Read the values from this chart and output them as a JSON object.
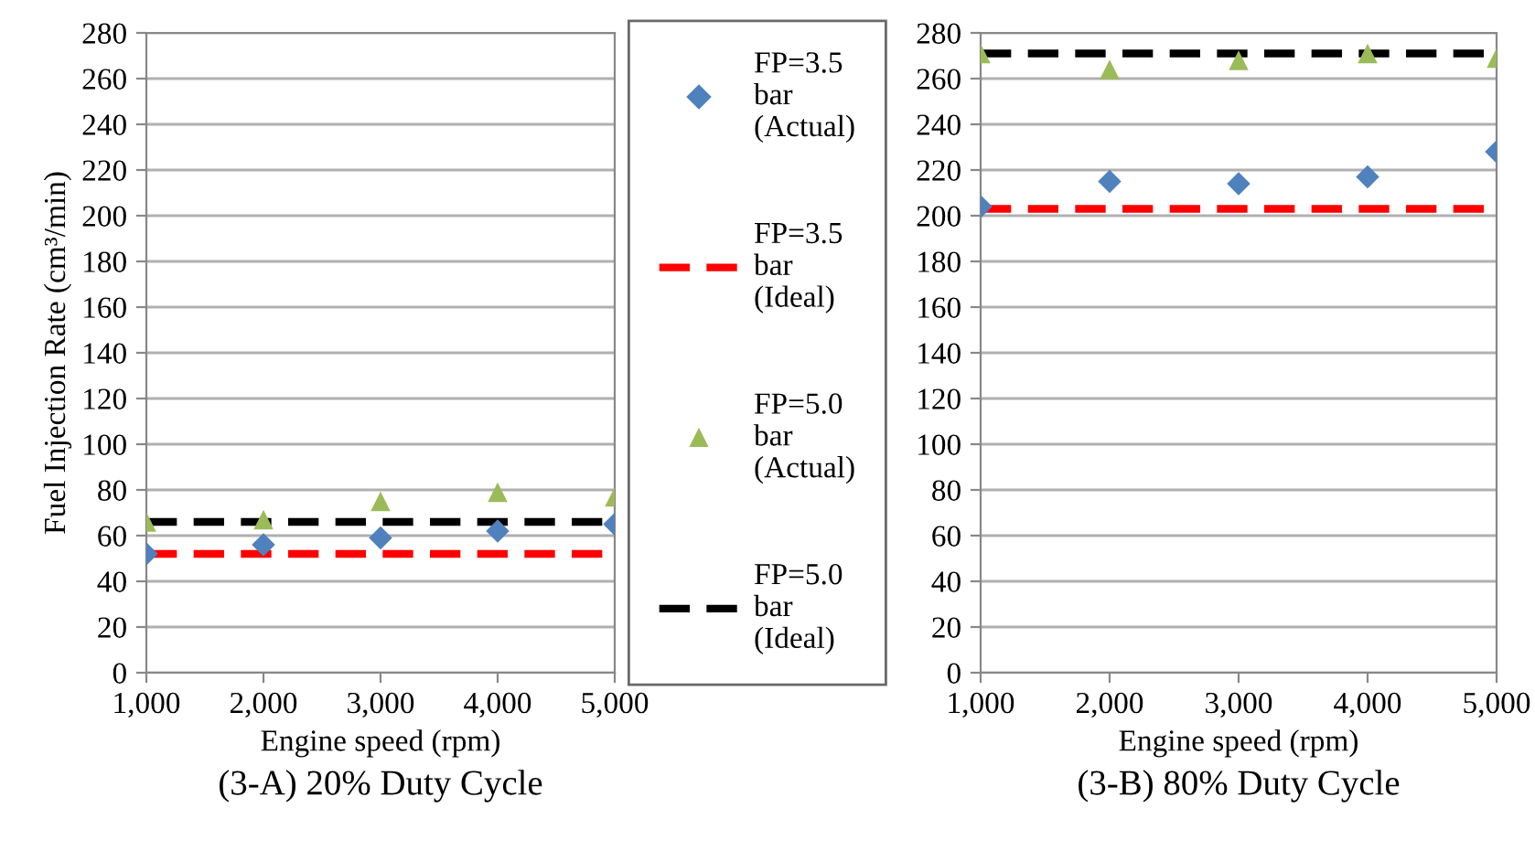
{
  "chart_data": [
    {
      "type": "scatter",
      "xlabel": "Engine speed (rpm)",
      "ylabel": "Fuel Injection Rate (cm³/min)",
      "annotations": [
        "(3-A) 20% Duty Cycle"
      ],
      "xlim": [
        1000,
        5000
      ],
      "xticks": [
        {
          "value": 1000,
          "label": "1,000"
        },
        {
          "value": 2000,
          "label": "2,000"
        },
        {
          "value": 3000,
          "label": "3,000"
        },
        {
          "value": 4000,
          "label": "4,000"
        },
        {
          "value": 5000,
          "label": "5,000"
        }
      ],
      "ylim": [
        0,
        280
      ],
      "yticks": [
        0,
        20,
        40,
        60,
        80,
        100,
        120,
        140,
        160,
        180,
        200,
        220,
        240,
        260,
        280
      ],
      "grid": "y",
      "legend": "right",
      "series": [
        {
          "name": "FP=3.5 bar (Actual)",
          "marker": "diamond",
          "color": "#4f81bd",
          "x": [
            1000,
            2000,
            3000,
            4000,
            5000
          ],
          "values": [
            52,
            56,
            59,
            62,
            65
          ]
        },
        {
          "name": "FP=3.5 bar (Ideal)",
          "type": "line",
          "line_style": "dashed",
          "color": "#ff0000",
          "x": [
            1000,
            5000
          ],
          "values": [
            52,
            52
          ]
        },
        {
          "name": "FP=5.0 bar (Actual)",
          "marker": "triangle",
          "color": "#9bbb59",
          "x": [
            1000,
            2000,
            3000,
            4000,
            5000
          ],
          "values": [
            66,
            67,
            75,
            79,
            77
          ]
        },
        {
          "name": "FP=5.0 bar (Ideal)",
          "type": "line",
          "line_style": "dashed",
          "color": "#000000",
          "x": [
            1000,
            5000
          ],
          "values": [
            66,
            66
          ]
        }
      ]
    },
    {
      "type": "scatter",
      "xlabel": "Engine speed (rpm)",
      "annotations": [
        "(3-B) 80% Duty Cycle"
      ],
      "xlim": [
        1000,
        5000
      ],
      "xticks": [
        {
          "value": 1000,
          "label": "1,000"
        },
        {
          "value": 2000,
          "label": "2,000"
        },
        {
          "value": 3000,
          "label": "3,000"
        },
        {
          "value": 4000,
          "label": "4,000"
        },
        {
          "value": 5000,
          "label": "5,000"
        }
      ],
      "ylim": [
        0,
        280
      ],
      "yticks": [
        0,
        20,
        40,
        60,
        80,
        100,
        120,
        140,
        160,
        180,
        200,
        220,
        240,
        260,
        280
      ],
      "grid": "y",
      "series": [
        {
          "marker": "diamond",
          "color": "#4f81bd",
          "x": [
            1000,
            2000,
            3000,
            4000,
            5000
          ],
          "values": [
            204,
            215,
            214,
            217,
            228
          ]
        },
        {
          "type": "line",
          "line_style": "dashed",
          "color": "#ff0000",
          "x": [
            1000,
            5000
          ],
          "values": [
            203,
            203
          ]
        },
        {
          "marker": "triangle",
          "color": "#9bbb59",
          "x": [
            1000,
            2000,
            3000,
            4000,
            5000
          ],
          "values": [
            271,
            264,
            268,
            271,
            269
          ]
        },
        {
          "type": "line",
          "line_style": "dashed",
          "color": "#000000",
          "x": [
            1000,
            5000
          ],
          "values": [
            271,
            271
          ]
        }
      ]
    }
  ]
}
